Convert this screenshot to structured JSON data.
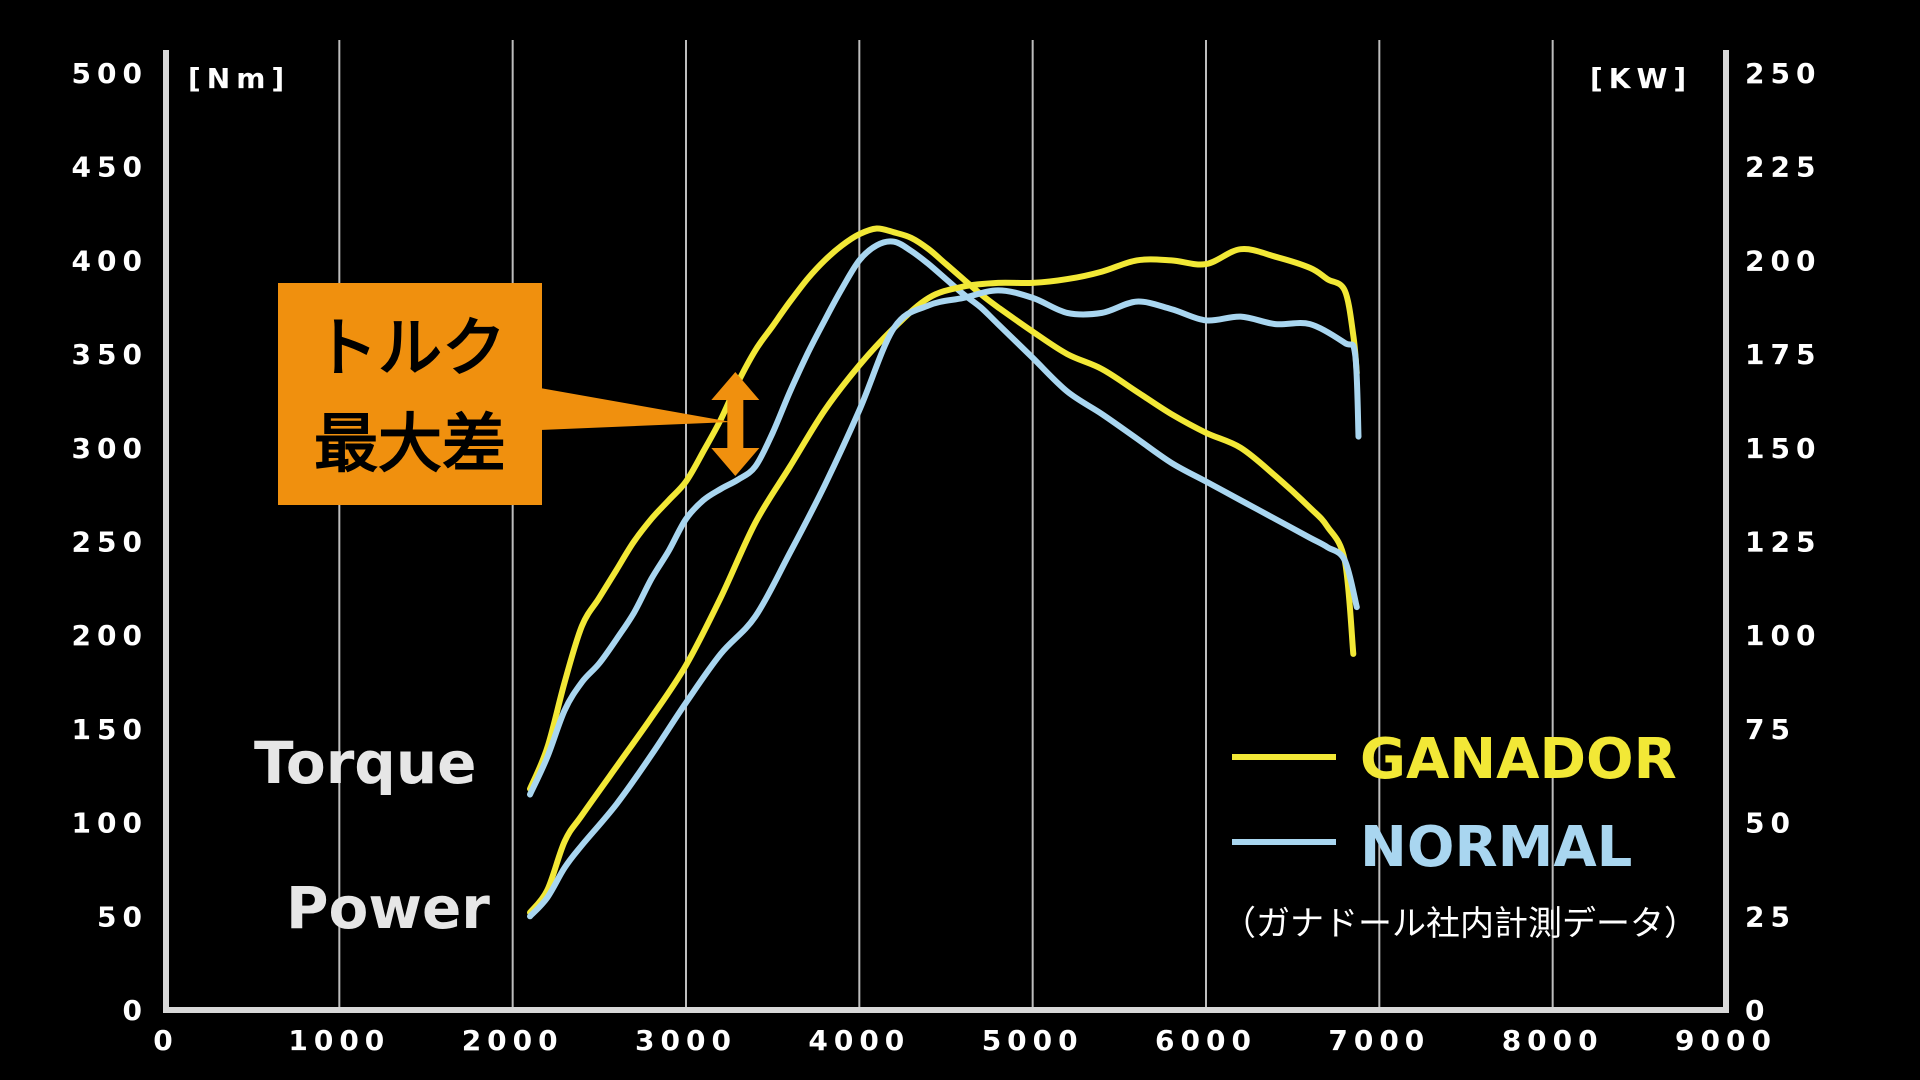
{
  "chart_data": {
    "type": "line",
    "left_unit": "[Nm]",
    "right_unit": "[KW]",
    "xlim": [
      0,
      9000
    ],
    "ylim_left": [
      0,
      500
    ],
    "ylim_right": [
      0,
      250
    ],
    "x_ticks": [
      "0",
      "1000",
      "2000",
      "3000",
      "4000",
      "5000",
      "6000",
      "7000",
      "8000",
      "9000"
    ],
    "y_ticks_left": [
      "0",
      "50",
      "100",
      "150",
      "200",
      "250",
      "300",
      "350",
      "400",
      "450",
      "500"
    ],
    "y_ticks_right": [
      "0",
      "25",
      "50",
      "75",
      "100",
      "125",
      "150",
      "175",
      "200",
      "225",
      "250"
    ],
    "grid": "vertical",
    "legend_position": "bottom-right",
    "series": [
      {
        "name": "GANADOR",
        "group": "Torque",
        "color": "#f2e836",
        "x": [
          2100,
          2200,
          2300,
          2400,
          2500,
          2600,
          2700,
          2800,
          2900,
          3000,
          3100,
          3200,
          3300,
          3400,
          3500,
          3600,
          3700,
          3800,
          3900,
          4000,
          4100,
          4200,
          4300,
          4400,
          4500,
          4600,
          4700,
          4800,
          5000,
          5200,
          5400,
          5600,
          5800,
          6000,
          6200,
          6400,
          6600,
          6700,
          6800,
          6850
        ],
        "y": [
          118,
          140,
          175,
          205,
          220,
          235,
          250,
          262,
          272,
          282,
          298,
          315,
          335,
          352,
          365,
          378,
          390,
          400,
          408,
          414,
          417,
          415,
          412,
          406,
          398,
          390,
          382,
          375,
          362,
          350,
          342,
          330,
          318,
          308,
          300,
          285,
          268,
          258,
          240,
          190
        ]
      },
      {
        "name": "NORMAL",
        "group": "Torque",
        "color": "#a9d6f0",
        "x": [
          2100,
          2200,
          2300,
          2400,
          2500,
          2600,
          2700,
          2800,
          2900,
          3000,
          3100,
          3200,
          3300,
          3400,
          3500,
          3600,
          3700,
          3800,
          3900,
          4000,
          4100,
          4200,
          4300,
          4400,
          4500,
          4600,
          4700,
          4800,
          5000,
          5200,
          5400,
          5600,
          5800,
          6000,
          6200,
          6400,
          6600,
          6700,
          6800,
          6870
        ],
        "y": [
          115,
          135,
          160,
          175,
          185,
          198,
          212,
          230,
          245,
          262,
          272,
          278,
          283,
          290,
          308,
          330,
          350,
          368,
          385,
          400,
          408,
          410,
          405,
          398,
          390,
          382,
          375,
          366,
          348,
          330,
          318,
          305,
          292,
          282,
          272,
          262,
          252,
          247,
          240,
          215
        ]
      },
      {
        "name": "GANADOR",
        "group": "Power",
        "color": "#f2e836",
        "x": [
          2100,
          2200,
          2300,
          2400,
          2600,
          2800,
          3000,
          3200,
          3400,
          3600,
          3800,
          4000,
          4200,
          4400,
          4600,
          4800,
          5000,
          5200,
          5400,
          5600,
          5800,
          6000,
          6200,
          6400,
          6600,
          6700,
          6800,
          6850,
          6870
        ],
        "y": [
          26,
          32,
          45,
          52,
          65,
          78,
          92,
          110,
          130,
          145,
          160,
          172,
          182,
          190,
          193,
          194,
          194,
          195,
          197,
          200,
          200,
          199,
          203,
          201,
          198,
          195,
          192,
          180,
          170
        ]
      },
      {
        "name": "NORMAL",
        "group": "Power",
        "color": "#a9d6f0",
        "x": [
          2100,
          2200,
          2300,
          2400,
          2600,
          2800,
          3000,
          3200,
          3400,
          3600,
          3800,
          4000,
          4200,
          4400,
          4600,
          4800,
          5000,
          5200,
          5400,
          5600,
          5800,
          6000,
          6200,
          6400,
          6600,
          6800,
          6860,
          6880
        ],
        "y": [
          25,
          30,
          38,
          44,
          55,
          68,
          82,
          95,
          105,
          122,
          140,
          160,
          182,
          188,
          190,
          192,
          190,
          186,
          186,
          189,
          187,
          184,
          185,
          183,
          183,
          178,
          175,
          153
        ]
      }
    ],
    "side_labels": {
      "torque": "Torque",
      "power": "Power"
    },
    "legend": {
      "items": [
        {
          "label": "GANADOR",
          "color": "#f2e836"
        },
        {
          "label": "NORMAL",
          "color": "#a9d6f0"
        }
      ],
      "note": "（ガナドール社内計測データ）"
    },
    "annotation": {
      "line1": "トルク",
      "line2": "最大差",
      "box_color": "#f0900e",
      "at_rpm": 3400
    }
  }
}
